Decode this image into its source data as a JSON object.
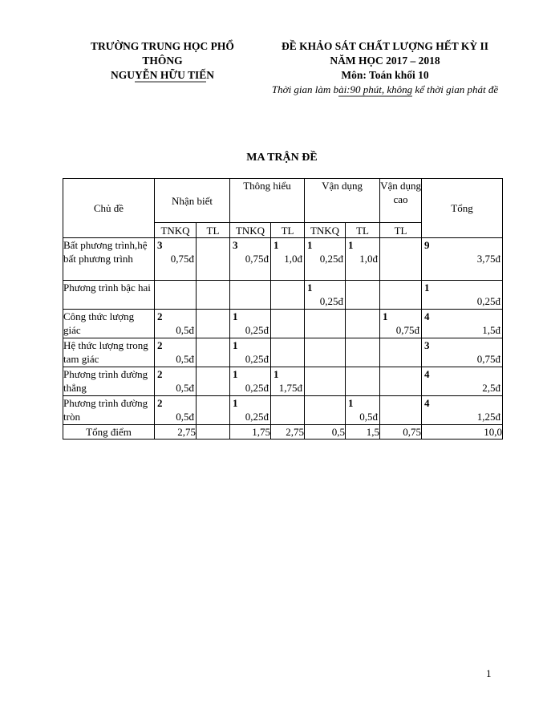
{
  "header": {
    "school_line1": "TRƯỜNG TRUNG HỌC PHỔ",
    "school_line2": "THÔNG",
    "school_name_pre": "NGU",
    "school_name_underlined": "YỄN HỮU TIẾ",
    "school_name_post": "N",
    "exam_title": "ĐỀ KHẢO SÁT CHẤT LƯỢNG HẾT KỲ II",
    "school_year": "NĂM HỌC 2017 – 2018",
    "subject": "Môn: Toán khối 10",
    "time_pre": "Thời gian làm b",
    "time_underlined": "ài:90 phút, không",
    "time_post": " kể thời gian phát đề"
  },
  "title": "MA TRẬN ĐỀ",
  "table": {
    "header": {
      "topic": "Chủ đề",
      "levels": [
        "Nhận biết",
        "Thông hiểu",
        "Vận dụng",
        "Vận dụng cao"
      ],
      "sub": [
        "TNKQ",
        "TL",
        "TNKQ",
        "TL",
        "TNKQ",
        "TL",
        "TL"
      ],
      "total": "Tổng"
    },
    "rows": [
      {
        "topic": "Bất phương trình,hệ bất phương trình",
        "cells": [
          {
            "count": "3",
            "points": "0,75đ"
          },
          null,
          {
            "count": "3",
            "points": "0,75đ"
          },
          {
            "count": "1",
            "points": "1,0đ"
          },
          {
            "count": "1",
            "points": "0,25đ"
          },
          {
            "count": "1",
            "points": "1,0đ"
          },
          null,
          {
            "count": "9",
            "points": "3,75đ"
          }
        ]
      },
      {
        "topic": "Phương trình bậc hai",
        "cells": [
          null,
          null,
          null,
          null,
          {
            "count": "1",
            "points": "0,25đ"
          },
          null,
          null,
          {
            "count": "1",
            "points": "0,25đ"
          }
        ]
      },
      {
        "topic": "Công thức lượng giác",
        "cells": [
          {
            "count": "2",
            "points": "0,5đ"
          },
          null,
          {
            "count": "1",
            "points": "0,25đ"
          },
          null,
          null,
          null,
          {
            "count": "1",
            "points": "0,75đ"
          },
          {
            "count": "4",
            "points": "1,5đ"
          }
        ]
      },
      {
        "topic": "Hệ thức lượng trong tam giác",
        "cells": [
          {
            "count": "2",
            "points": "0,5đ"
          },
          null,
          {
            "count": "1",
            "points": "0,25đ"
          },
          null,
          null,
          null,
          null,
          {
            "count": "3",
            "points": "0,75đ"
          }
        ]
      },
      {
        "topic": "Phương trình đường thẳng",
        "cells": [
          {
            "count": "2",
            "points": "0,5đ"
          },
          null,
          {
            "count": "1",
            "points": "0,25đ"
          },
          {
            "count": "1",
            "points": "1,75đ"
          },
          null,
          null,
          null,
          {
            "count": "4",
            "points": "2,5đ"
          }
        ]
      },
      {
        "topic": "Phương trình đường tròn",
        "cells": [
          {
            "count": "2",
            "points": "0,5đ"
          },
          null,
          {
            "count": "1",
            "points": "0,25đ"
          },
          null,
          null,
          {
            "count": "1",
            "points": "0,5đ"
          },
          null,
          {
            "count": "4",
            "points": "1,25đ"
          }
        ]
      }
    ],
    "footer": {
      "label": "Tổng điểm",
      "values": [
        "2,75",
        "",
        "1,75",
        "2,75",
        "0,5",
        "1,5",
        "0,75",
        "10,0"
      ]
    }
  },
  "page": {
    "number": "1"
  }
}
